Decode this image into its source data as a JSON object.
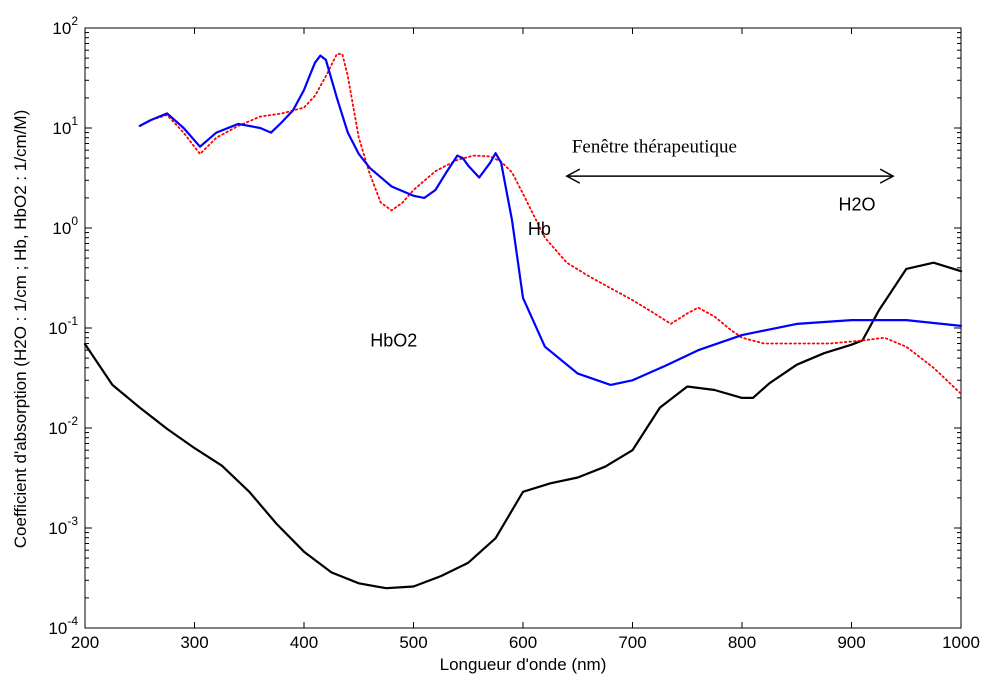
{
  "chart_data": {
    "type": "line",
    "title": "",
    "xlabel": "Longueur d'onde (nm)",
    "ylabel": "Coefficient d'absorption (H2O : 1/cm ; Hb, HbO2 : 1/cm/M)",
    "xlim": [
      200,
      1000
    ],
    "ylim_log10": [
      -4,
      2
    ],
    "y_scale": "log",
    "grid": false,
    "x_ticks": [
      "200",
      "300",
      "400",
      "500",
      "600",
      "700",
      "800",
      "900",
      "1000"
    ],
    "y_ticks": [
      {
        "base": "10",
        "exp": "-4"
      },
      {
        "base": "10",
        "exp": "-3"
      },
      {
        "base": "10",
        "exp": "-2"
      },
      {
        "base": "10",
        "exp": "-1"
      },
      {
        "base": "10",
        "exp": "0"
      },
      {
        "base": "10",
        "exp": "1"
      },
      {
        "base": "10",
        "exp": "2"
      }
    ],
    "series": [
      {
        "name": "H2O",
        "color": "#000000",
        "style": "solid",
        "x": [
          200,
          225,
          250,
          275,
          300,
          325,
          350,
          375,
          400,
          425,
          450,
          475,
          500,
          525,
          550,
          575,
          600,
          625,
          650,
          675,
          700,
          725,
          750,
          775,
          800,
          810,
          825,
          850,
          875,
          900,
          910,
          925,
          950,
          975,
          1000
        ],
        "y": [
          0.069,
          0.027,
          0.016,
          0.0098,
          0.0063,
          0.0042,
          0.0023,
          0.0011,
          0.00058,
          0.00036,
          0.00028,
          0.00025,
          0.00026,
          0.00033,
          0.00045,
          0.00079,
          0.0023,
          0.0028,
          0.0032,
          0.0041,
          0.006,
          0.016,
          0.026,
          0.024,
          0.02,
          0.02,
          0.028,
          0.043,
          0.056,
          0.068,
          0.075,
          0.15,
          0.39,
          0.45,
          0.37
        ]
      },
      {
        "name": "Hb",
        "color": "#ff0000",
        "style": "dotted",
        "x": [
          250,
          260,
          275,
          290,
          305,
          320,
          340,
          360,
          380,
          400,
          410,
          420,
          430,
          435,
          440,
          450,
          460,
          470,
          480,
          490,
          500,
          520,
          540,
          555,
          570,
          580,
          590,
          600,
          620,
          640,
          660,
          680,
          700,
          720,
          735,
          750,
          760,
          775,
          790,
          800,
          820,
          850,
          880,
          910,
          930,
          950,
          975,
          1000
        ],
        "y": [
          10.5,
          12,
          13.5,
          9,
          5.5,
          8,
          10.5,
          13,
          14,
          16,
          21,
          33,
          55,
          55,
          33,
          8,
          3.5,
          1.8,
          1.5,
          1.8,
          2.4,
          3.7,
          4.8,
          5.3,
          5.2,
          4.6,
          3.6,
          2.2,
          0.8,
          0.45,
          0.33,
          0.25,
          0.19,
          0.14,
          0.11,
          0.14,
          0.16,
          0.13,
          0.095,
          0.08,
          0.07,
          0.07,
          0.07,
          0.075,
          0.08,
          0.065,
          0.04,
          0.022
        ]
      },
      {
        "name": "HbO2",
        "color": "#0000ff",
        "style": "solid",
        "x": [
          250,
          260,
          275,
          290,
          305,
          320,
          340,
          360,
          370,
          380,
          390,
          400,
          405,
          410,
          415,
          420,
          430,
          440,
          450,
          460,
          480,
          500,
          510,
          520,
          530,
          540,
          545,
          550,
          560,
          570,
          575,
          580,
          590,
          600,
          620,
          650,
          680,
          700,
          730,
          760,
          800,
          850,
          900,
          950,
          1000
        ],
        "y": [
          10.5,
          12,
          14,
          10,
          6.5,
          9,
          11,
          10,
          9,
          11.5,
          15,
          24,
          33,
          45,
          53,
          48,
          20,
          9,
          5.5,
          4,
          2.6,
          2.1,
          2.0,
          2.4,
          3.6,
          5.3,
          5.0,
          4.2,
          3.2,
          4.5,
          5.6,
          4.5,
          1.2,
          0.2,
          0.065,
          0.035,
          0.027,
          0.03,
          0.042,
          0.06,
          0.085,
          0.11,
          0.12,
          0.12,
          0.105
        ]
      }
    ],
    "annotations": [
      {
        "text": "Fenêtre thérapeutique",
        "x": 720,
        "y": 5.7
      },
      {
        "text": "Hb",
        "x": 615,
        "y": 0.85
      },
      {
        "text": "HbO2",
        "x": 482,
        "y": 0.065
      },
      {
        "text": "H2O",
        "x": 905,
        "y": 1.5
      }
    ],
    "arrow": {
      "x_start": 640,
      "x_end": 938,
      "y": 3.3,
      "style": "double-headed"
    }
  }
}
